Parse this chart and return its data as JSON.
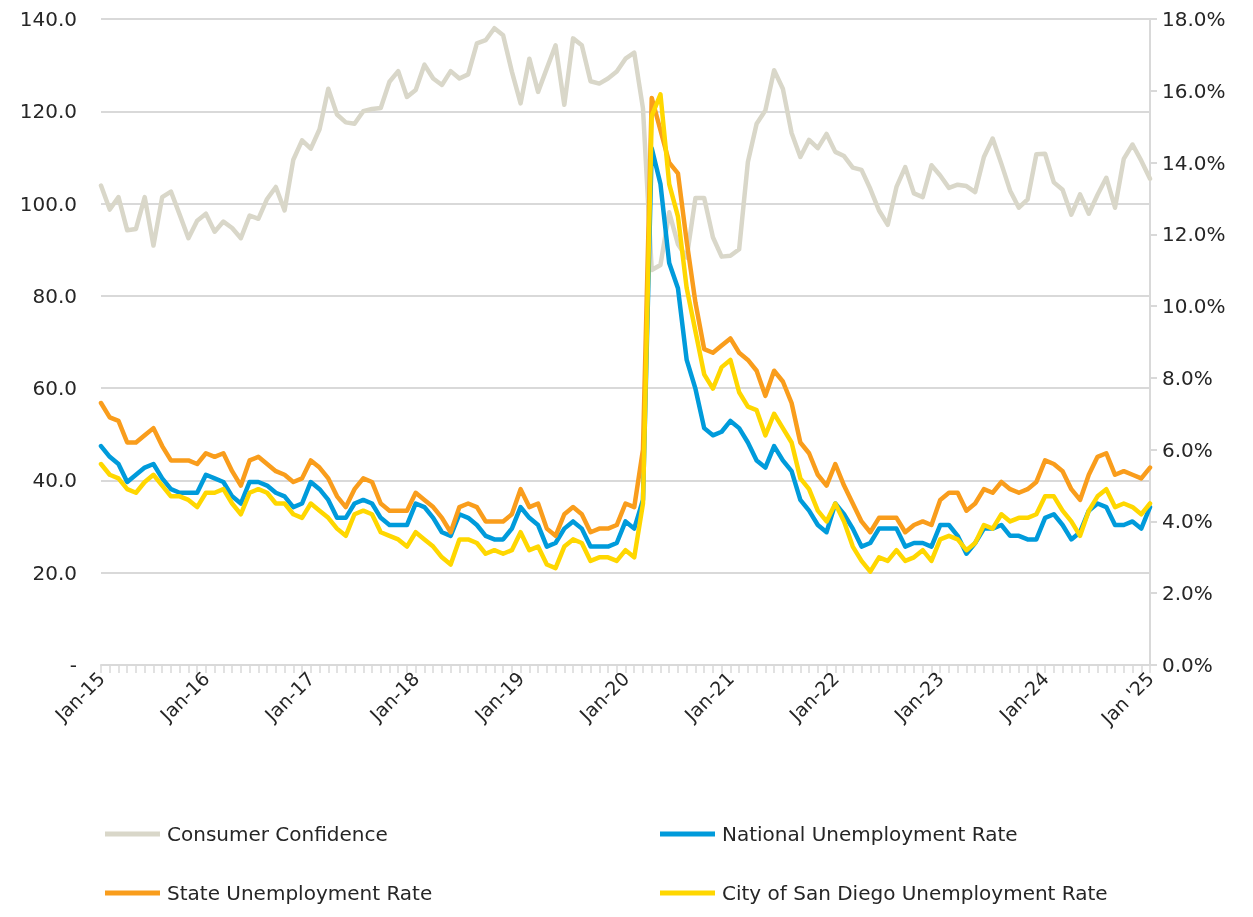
{
  "chart_data": {
    "type": "line",
    "categories": [
      "Jan-15",
      null,
      null,
      null,
      null,
      null,
      null,
      null,
      null,
      null,
      null,
      null,
      "Jan-16",
      null,
      null,
      null,
      null,
      null,
      null,
      null,
      null,
      null,
      null,
      null,
      "Jan-17",
      null,
      null,
      null,
      null,
      null,
      null,
      null,
      null,
      null,
      null,
      null,
      "Jan-18",
      null,
      null,
      null,
      null,
      null,
      null,
      null,
      null,
      null,
      null,
      null,
      "Jan-19",
      null,
      null,
      null,
      null,
      null,
      null,
      null,
      null,
      null,
      null,
      null,
      "Jan-20",
      null,
      null,
      null,
      null,
      null,
      null,
      null,
      null,
      null,
      null,
      null,
      "Jan-21",
      null,
      null,
      null,
      null,
      null,
      null,
      null,
      null,
      null,
      null,
      null,
      "Jan-22",
      null,
      null,
      null,
      null,
      null,
      null,
      null,
      null,
      null,
      null,
      null,
      "Jan-23",
      null,
      null,
      null,
      null,
      null,
      null,
      null,
      null,
      null,
      null,
      null,
      "Jan-24",
      null,
      null,
      null,
      null,
      null,
      null,
      null,
      null,
      null,
      null,
      null,
      "Jan '25"
    ],
    "series": [
      {
        "name": "Consumer Confidence",
        "color": "#d9d7c9",
        "values": [
          103.9,
          98.7,
          101.4,
          94.2,
          94.5,
          101.4,
          90.9,
          101.4,
          102.6,
          97.6,
          92.5,
          96.3,
          97.8,
          93.9,
          96.1,
          94.7,
          92.5,
          97.4,
          96.7,
          101.0,
          103.6,
          98.5,
          109.5,
          113.7,
          111.9,
          116.1,
          124.9,
          119.3,
          117.6,
          117.3,
          120.0,
          120.5,
          120.7,
          126.4,
          128.7,
          123.1,
          124.6,
          130.1,
          127.1,
          125.7,
          128.7,
          127.1,
          128.0,
          134.7,
          135.4,
          138.0,
          136.5,
          128.6,
          121.7,
          131.4,
          124.2,
          129.3,
          134.3,
          121.4,
          135.8,
          134.3,
          126.5,
          126.0,
          127.1,
          128.6,
          131.4,
          132.7,
          120.6,
          85.6,
          86.7,
          98.1,
          91.2,
          88.3,
          101.2,
          101.2,
          92.7,
          88.5,
          88.7,
          90.1,
          109.0,
          117.3,
          120.2,
          128.9,
          124.9,
          115.3,
          110.1,
          113.8,
          112.0,
          115.1,
          111.2,
          110.3,
          107.8,
          107.3,
          103.2,
          98.5,
          95.4,
          103.6,
          107.9,
          102.2,
          101.4,
          108.3,
          106.1,
          103.4,
          104.1,
          103.8,
          102.5,
          110.1,
          114.1,
          108.6,
          102.8,
          99.1,
          100.9,
          110.7,
          110.8,
          104.6,
          103.0,
          97.6,
          102.0,
          97.8,
          101.9,
          105.6,
          99.1,
          109.7,
          112.8,
          109.3,
          105.4
        ]
      },
      {
        "name": "National Unemployment Rate",
        "color": "#009bdb",
        "axis": "y2",
        "values": [
          6.1,
          5.8,
          5.6,
          5.1,
          5.3,
          5.5,
          5.6,
          5.2,
          4.9,
          4.8,
          4.8,
          4.8,
          5.3,
          5.2,
          5.1,
          4.7,
          4.5,
          5.1,
          5.1,
          5.0,
          4.8,
          4.7,
          4.4,
          4.5,
          5.1,
          4.9,
          4.6,
          4.1,
          4.1,
          4.5,
          4.6,
          4.5,
          4.1,
          3.9,
          3.9,
          3.9,
          4.5,
          4.4,
          4.1,
          3.7,
          3.6,
          4.2,
          4.1,
          3.9,
          3.6,
          3.5,
          3.5,
          3.8,
          4.4,
          4.1,
          3.9,
          3.3,
          3.4,
          3.8,
          4.0,
          3.8,
          3.3,
          3.3,
          3.3,
          3.4,
          4.0,
          3.8,
          4.6,
          14.4,
          13.4,
          11.2,
          10.5,
          8.5,
          7.7,
          6.6,
          6.4,
          6.5,
          6.8,
          6.6,
          6.2,
          5.7,
          5.5,
          6.1,
          5.7,
          5.4,
          4.6,
          4.3,
          3.9,
          3.7,
          4.5,
          4.2,
          3.8,
          3.3,
          3.4,
          3.8,
          3.8,
          3.8,
          3.3,
          3.4,
          3.4,
          3.3,
          3.9,
          3.9,
          3.6,
          3.1,
          3.4,
          3.8,
          3.8,
          3.9,
          3.6,
          3.6,
          3.5,
          3.5,
          4.1,
          4.2,
          3.9,
          3.5,
          3.7,
          4.3,
          4.5,
          4.4,
          3.9,
          3.9,
          4.0,
          3.8,
          4.4
        ]
      },
      {
        "name": "State Unemployment Rate",
        "color": "#f99d1c",
        "axis": "y2",
        "values": [
          7.3,
          6.9,
          6.8,
          6.2,
          6.2,
          6.4,
          6.6,
          6.1,
          5.7,
          5.7,
          5.7,
          5.6,
          5.9,
          5.8,
          5.9,
          5.4,
          5.0,
          5.7,
          5.8,
          5.6,
          5.4,
          5.3,
          5.1,
          5.2,
          5.7,
          5.5,
          5.2,
          4.7,
          4.4,
          4.9,
          5.2,
          5.1,
          4.5,
          4.3,
          4.3,
          4.3,
          4.8,
          4.6,
          4.4,
          4.1,
          3.7,
          4.4,
          4.5,
          4.4,
          4.0,
          4.0,
          4.0,
          4.2,
          4.9,
          4.4,
          4.5,
          3.8,
          3.6,
          4.2,
          4.4,
          4.2,
          3.7,
          3.8,
          3.8,
          3.9,
          4.5,
          4.4,
          6.0,
          15.8,
          14.9,
          14.0,
          13.7,
          11.8,
          10.1,
          8.8,
          8.7,
          8.9,
          9.1,
          8.7,
          8.5,
          8.2,
          7.5,
          8.2,
          7.9,
          7.3,
          6.2,
          5.9,
          5.3,
          5.0,
          5.6,
          5.0,
          4.5,
          4.0,
          3.7,
          4.1,
          4.1,
          4.1,
          3.7,
          3.9,
          4.0,
          3.9,
          4.6,
          4.8,
          4.8,
          4.3,
          4.5,
          4.9,
          4.8,
          5.1,
          4.9,
          4.8,
          4.9,
          5.1,
          5.7,
          5.6,
          5.4,
          4.9,
          4.6,
          5.3,
          5.8,
          5.9,
          5.3,
          5.4,
          5.3,
          5.2,
          5.5
        ]
      },
      {
        "name": "City of San Diego Unemployment Rate",
        "color": "#ffd700",
        "axis": "y2",
        "values": [
          5.6,
          5.3,
          5.2,
          4.9,
          4.8,
          5.1,
          5.3,
          5.0,
          4.7,
          4.7,
          4.6,
          4.4,
          4.8,
          4.8,
          4.9,
          4.5,
          4.2,
          4.8,
          4.9,
          4.8,
          4.5,
          4.5,
          4.2,
          4.1,
          4.5,
          4.3,
          4.1,
          3.8,
          3.6,
          4.2,
          4.3,
          4.2,
          3.7,
          3.6,
          3.5,
          3.3,
          3.7,
          3.5,
          3.3,
          3.0,
          2.8,
          3.5,
          3.5,
          3.4,
          3.1,
          3.2,
          3.1,
          3.2,
          3.7,
          3.2,
          3.3,
          2.8,
          2.7,
          3.3,
          3.5,
          3.4,
          2.9,
          3.0,
          3.0,
          2.9,
          3.2,
          3.0,
          4.5,
          15.3,
          15.9,
          13.4,
          12.5,
          10.5,
          9.3,
          8.1,
          7.7,
          8.3,
          8.5,
          7.6,
          7.2,
          7.1,
          6.4,
          7.0,
          6.6,
          6.2,
          5.2,
          4.9,
          4.3,
          4.0,
          4.5,
          4.0,
          3.3,
          2.9,
          2.6,
          3.0,
          2.9,
          3.2,
          2.9,
          3.0,
          3.2,
          2.9,
          3.5,
          3.6,
          3.5,
          3.2,
          3.4,
          3.9,
          3.8,
          4.2,
          4.0,
          4.1,
          4.1,
          4.2,
          4.7,
          4.7,
          4.3,
          4.0,
          3.6,
          4.3,
          4.7,
          4.9,
          4.4,
          4.5,
          4.4,
          4.2,
          4.5
        ]
      }
    ],
    "ylim": [
      0,
      140
    ],
    "yticks": [
      {
        "value": 0,
        "label": "-"
      },
      {
        "value": 20,
        "label": "20.0"
      },
      {
        "value": 40,
        "label": "40.0"
      },
      {
        "value": 60,
        "label": "60.0"
      },
      {
        "value": 80,
        "label": "80.0"
      },
      {
        "value": 100,
        "label": "100.0"
      },
      {
        "value": 120,
        "label": "120.0"
      },
      {
        "value": 140,
        "label": "140.0"
      }
    ],
    "y2lim": [
      0,
      18
    ],
    "y2ticks": [
      {
        "value": 0,
        "label": "0.0%"
      },
      {
        "value": 2,
        "label": "2.0%"
      },
      {
        "value": 4,
        "label": "4.0%"
      },
      {
        "value": 6,
        "label": "6.0%"
      },
      {
        "value": 8,
        "label": "8.0%"
      },
      {
        "value": 10,
        "label": "10.0%"
      },
      {
        "value": 12,
        "label": "12.0%"
      },
      {
        "value": 14,
        "label": "14.0%"
      },
      {
        "value": 16,
        "label": "16.0%"
      },
      {
        "value": 18,
        "label": "18.0%"
      }
    ],
    "grid": "y",
    "legend": "bottom",
    "marker": "none",
    "line_style": "solid"
  }
}
